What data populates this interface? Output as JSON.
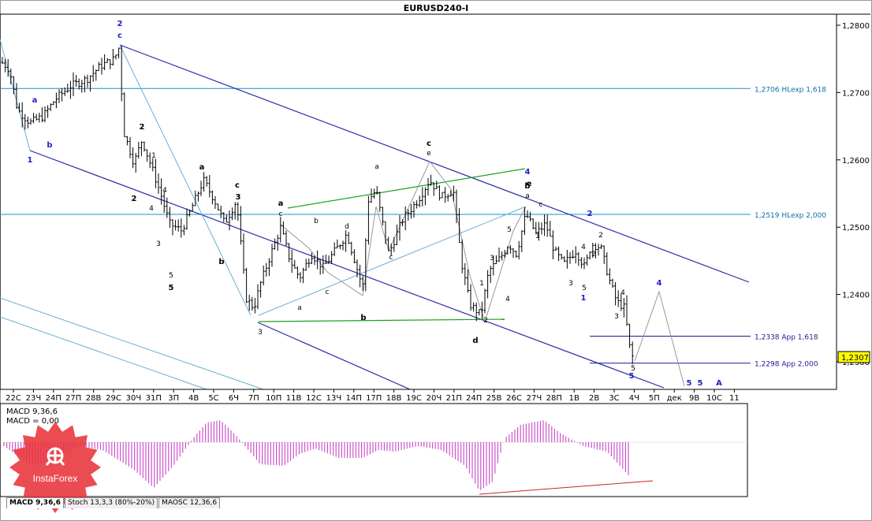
{
  "chart_data": {
    "type": "candlestick",
    "title": "EURUSD240-I",
    "price_ticks": [
      "1,2800",
      "1,2700",
      "1,2600",
      "1,2500",
      "1,2400",
      "1,2300"
    ],
    "price_tick_values": [
      1.28,
      1.27,
      1.26,
      1.25,
      1.24,
      1.23
    ],
    "ylim": [
      1.2245,
      1.2835
    ],
    "current_price": "1,2307",
    "date_labels": [
      "22С",
      "23Ч",
      "24П",
      "27П",
      "28В",
      "29С",
      "30Ч",
      "31П",
      "3П",
      "4В",
      "5С",
      "6Ч",
      "7П",
      "10П",
      "11В",
      "12С",
      "13Ч",
      "14П",
      "17П",
      "18В",
      "19С",
      "20Ч",
      "21П",
      "24П",
      "25В",
      "26С",
      "27Ч",
      "28П",
      "1В",
      "2В",
      "3С",
      "4Ч",
      "5П",
      "дек",
      "9В",
      "10С",
      "11"
    ],
    "levels": [
      {
        "label": "1,2706 HLexp 1,618",
        "price": 1.2706,
        "color": "#1e8ec8"
      },
      {
        "label": "1,2519 HLexp 2,000",
        "price": 1.2519,
        "color": "#1e8ec8"
      },
      {
        "label": "1,2338 App 1,618",
        "price": 1.2338,
        "color": "#1a1a8f"
      },
      {
        "label": "1,2298 App 2,000",
        "price": 1.2298,
        "color": "#1a1a8f"
      }
    ],
    "wave_labels": [
      "2",
      "c",
      "a",
      "b",
      "1",
      "2",
      "1",
      "2",
      "4",
      "5",
      "3",
      "a",
      "4",
      "c",
      "b",
      "5",
      "3",
      "a",
      "c",
      "b",
      "d",
      "a",
      "c",
      "e",
      "b",
      "a",
      "c",
      "b",
      "c",
      "a",
      "4",
      "e",
      "c",
      "2",
      "3",
      "1",
      "5",
      "4",
      "2",
      "1",
      "3",
      "4",
      "5",
      "3",
      "2",
      "d",
      "4",
      "5",
      "3",
      "1",
      "2",
      "5",
      "4",
      "5",
      "5",
      "A"
    ],
    "indicator": {
      "name": "MACD 9,36,6",
      "value_label": "MACD = 0,00"
    },
    "colors": {
      "channel": "#2a2aa8",
      "green_line": "#1aa31a",
      "level_line": "#1e8ec8",
      "macd_positive": "#cc55cc",
      "macd_negative": "#cc55cc",
      "divergence_line": "#cc2222",
      "current_price_box": "#ffff00"
    }
  },
  "tabs": [
    {
      "label": "MACD 9,36,6"
    },
    {
      "label": "Stoch 13,3,3 (80%-20%)"
    },
    {
      "label": "MAOSC 12,36,6"
    }
  ],
  "logo": {
    "text": "InstaForex",
    "color": "#e8333a"
  }
}
